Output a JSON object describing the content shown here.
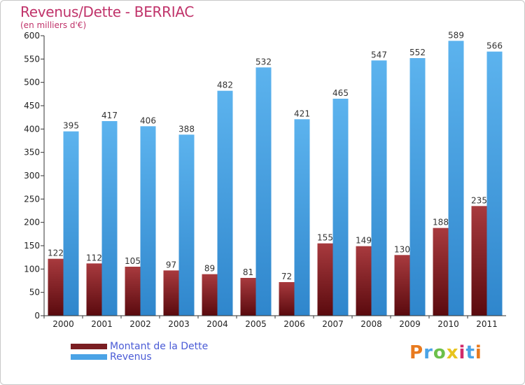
{
  "chart_data": {
    "type": "bar",
    "title": "Revenus/Dette - BERRIAC",
    "subtitle": "(en milliers d'€)",
    "categories": [
      "2000",
      "2001",
      "2002",
      "2003",
      "2004",
      "2005",
      "2006",
      "2007",
      "2008",
      "2009",
      "2010",
      "2011"
    ],
    "series": [
      {
        "name": "Montant de la Dette",
        "values": [
          122,
          112,
          105,
          97,
          89,
          81,
          72,
          155,
          149,
          130,
          188,
          235
        ],
        "color": "#7a1e22"
      },
      {
        "name": "Revenus",
        "values": [
          395,
          417,
          406,
          388,
          482,
          532,
          421,
          465,
          547,
          552,
          589,
          566
        ],
        "color": "#4aa3e6"
      }
    ],
    "ylim": [
      0,
      600
    ],
    "yticks": [
      0,
      50,
      100,
      150,
      200,
      250,
      300,
      350,
      400,
      450,
      500,
      550,
      600
    ],
    "grid": false,
    "legend_position": "bottom-left"
  },
  "brand": {
    "text": "Proxiti",
    "letter_colors": [
      "#e87a1e",
      "#4aa3e6",
      "#6cc04a",
      "#e8c41e",
      "#d12a6a",
      "#4aa3e6",
      "#e87a1e"
    ]
  }
}
